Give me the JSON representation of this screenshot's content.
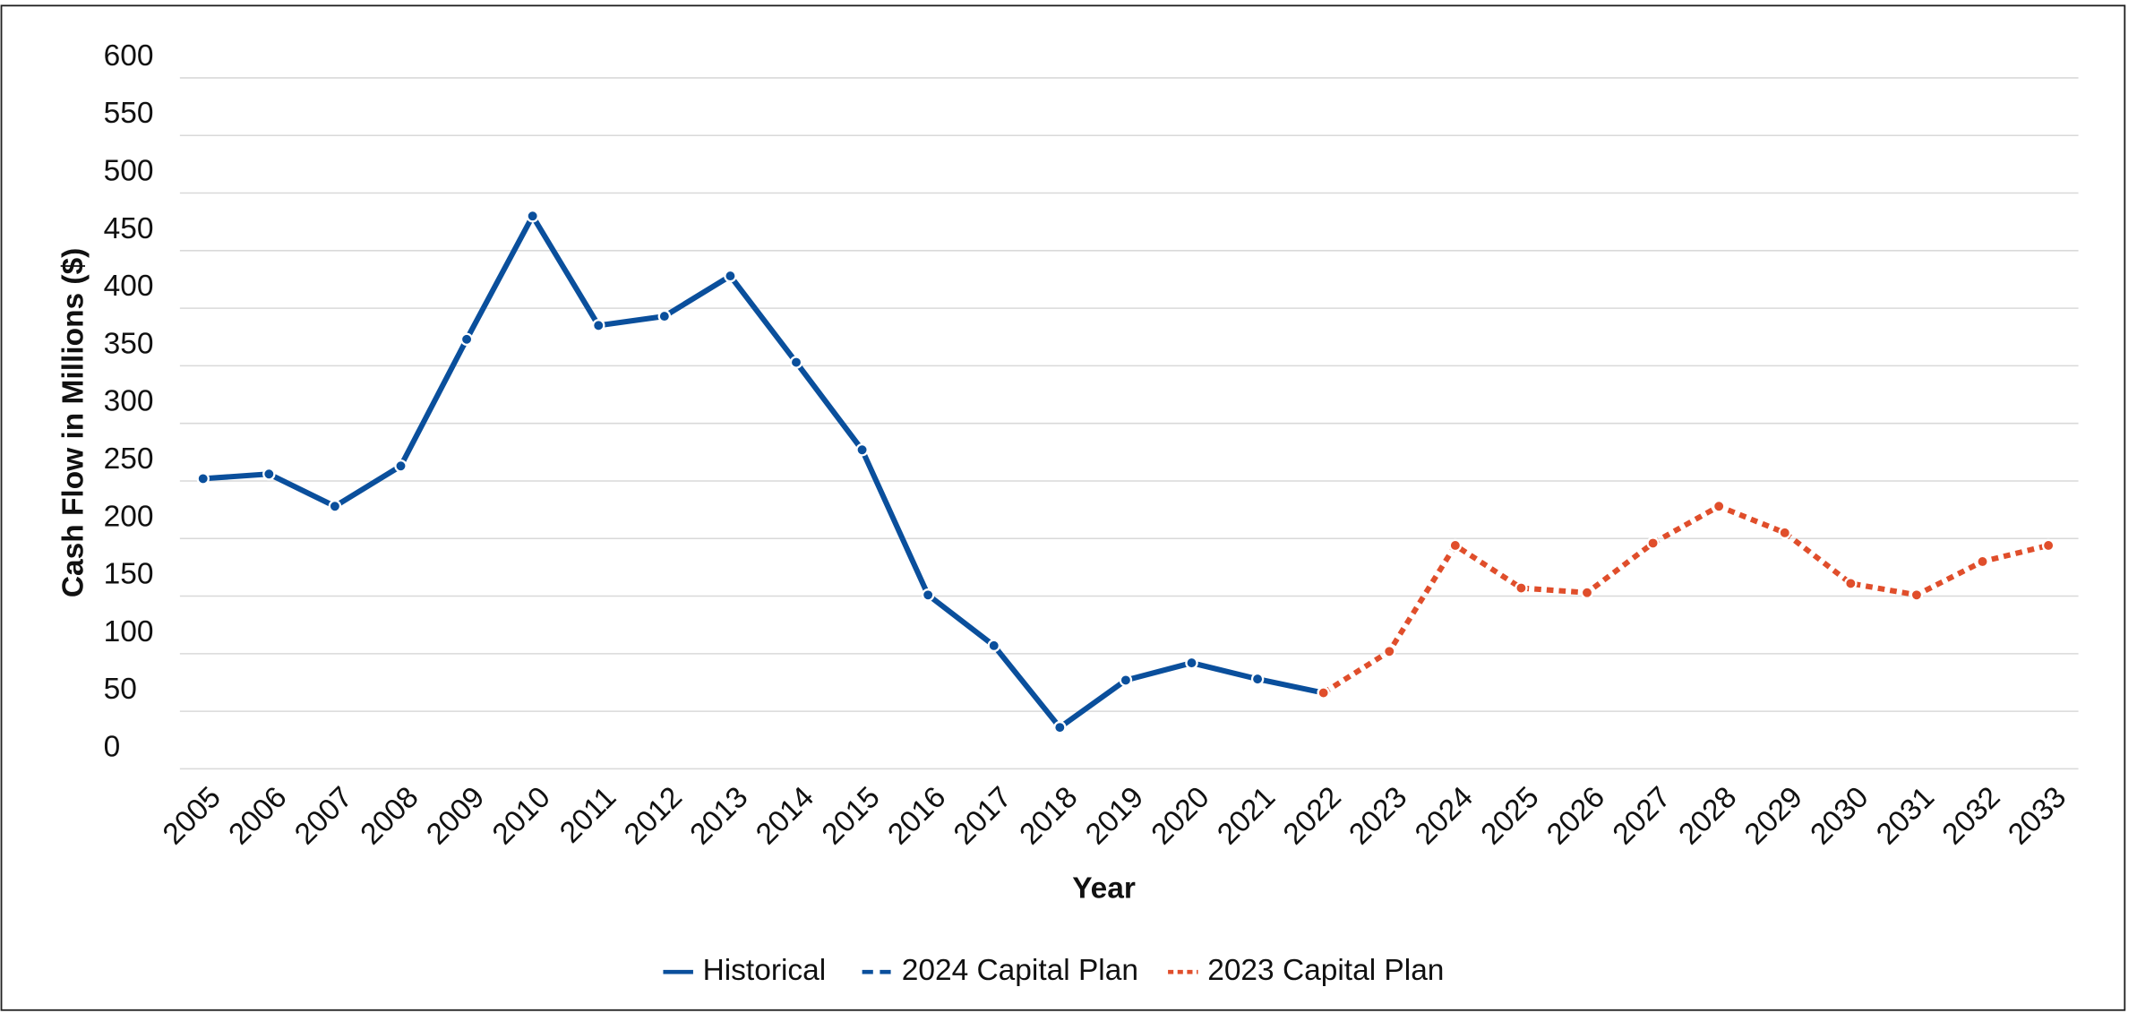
{
  "chart_data": {
    "type": "line",
    "xlabel": "Year",
    "ylabel": "Cash Flow in Millions ($)",
    "categories": [
      "2005",
      "2006",
      "2007",
      "2008",
      "2009",
      "2010",
      "2011",
      "2012",
      "2013",
      "2014",
      "2015",
      "2016",
      "2017",
      "2018",
      "2019",
      "2020",
      "2021",
      "2022",
      "2023",
      "2024",
      "2025",
      "2026",
      "2027",
      "2028",
      "2029",
      "2030",
      "2031",
      "2032",
      "2033"
    ],
    "series": [
      {
        "name": "Historical",
        "color": "#0a4f9c",
        "dash": "solid",
        "values": [
          252,
          256,
          228,
          263,
          373,
          480,
          385,
          393,
          428,
          353,
          277,
          151,
          107,
          36,
          77,
          92,
          78,
          66,
          null,
          null,
          null,
          null,
          null,
          null,
          null,
          null,
          null,
          null,
          null
        ]
      },
      {
        "name": "2024 Capital Plan",
        "color": "#0a4f9c",
        "dash": "dashed",
        "values": [
          null,
          null,
          null,
          null,
          null,
          null,
          null,
          null,
          null,
          null,
          null,
          null,
          null,
          null,
          null,
          null,
          null,
          null,
          null,
          null,
          null,
          null,
          null,
          null,
          null,
          null,
          null,
          null,
          null
        ]
      },
      {
        "name": "2023 Capital Plan",
        "color": "#e04e2b",
        "dash": "dotted",
        "values": [
          null,
          null,
          null,
          null,
          null,
          null,
          null,
          null,
          null,
          null,
          null,
          null,
          null,
          null,
          null,
          null,
          null,
          66,
          102,
          194,
          157,
          153,
          196,
          228,
          205,
          161,
          151,
          180,
          194
        ]
      }
    ],
    "ylim": [
      0,
      600
    ],
    "yticks": [
      0,
      50,
      100,
      150,
      200,
      250,
      300,
      350,
      400,
      450,
      500,
      550,
      600
    ],
    "grid": true,
    "legend": "bottom"
  }
}
